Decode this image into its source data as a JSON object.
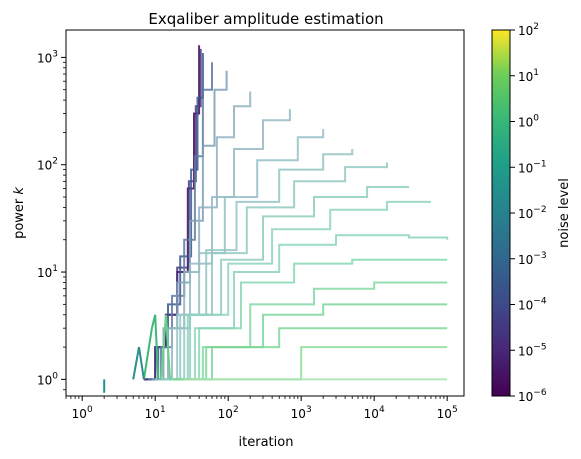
{
  "chart_data": {
    "type": "line",
    "title": "Exqaliber amplitude estimation",
    "xlabel": "iteration",
    "ylabel_main": "power ",
    "ylabel_var": "k",
    "xscale": "log",
    "yscale": "log",
    "xlim": [
      0.6,
      170000
    ],
    "ylim": [
      0.7,
      1800
    ],
    "x_ticks": [
      {
        "value": 1,
        "base": "10",
        "exp": "0"
      },
      {
        "value": 10,
        "base": "10",
        "exp": "1"
      },
      {
        "value": 100,
        "base": "10",
        "exp": "2"
      },
      {
        "value": 1000,
        "base": "10",
        "exp": "3"
      },
      {
        "value": 10000,
        "base": "10",
        "exp": "4"
      },
      {
        "value": 100000,
        "base": "10",
        "exp": "5"
      }
    ],
    "y_ticks": [
      {
        "value": 1,
        "base": "10",
        "exp": "0"
      },
      {
        "value": 10,
        "base": "10",
        "exp": "1"
      },
      {
        "value": 100,
        "base": "10",
        "exp": "2"
      },
      {
        "value": 1000,
        "base": "10",
        "exp": "3"
      }
    ],
    "grid": false,
    "colorbar": {
      "label": "noise level",
      "colormap": "viridis",
      "scale": "log",
      "range": [
        1e-06,
        100
      ],
      "ticks": [
        {
          "value": 1e-06,
          "base": "10",
          "exp": "−6"
        },
        {
          "value": 1e-05,
          "base": "10",
          "exp": "−5"
        },
        {
          "value": 0.0001,
          "base": "10",
          "exp": "−4"
        },
        {
          "value": 0.001,
          "base": "10",
          "exp": "−3"
        },
        {
          "value": 0.01,
          "base": "10",
          "exp": "−2"
        },
        {
          "value": 0.1,
          "base": "10",
          "exp": "−1"
        },
        {
          "value": 1,
          "base": "10",
          "exp": "0"
        },
        {
          "value": 10,
          "base": "10",
          "exp": "1"
        },
        {
          "value": 100,
          "base": "10",
          "exp": "2"
        }
      ]
    },
    "series": [
      {
        "noise": 1e-06,
        "color": "#440154",
        "points": [
          [
            7,
            1
          ],
          [
            10,
            2
          ],
          [
            14,
            4
          ],
          [
            20,
            10
          ],
          [
            28,
            60
          ],
          [
            34,
            300
          ],
          [
            40,
            1300
          ]
        ]
      },
      {
        "noise": 1e-05,
        "color": "#453781",
        "points": [
          [
            7,
            1
          ],
          [
            10,
            2
          ],
          [
            14,
            4
          ],
          [
            20,
            11
          ],
          [
            29,
            70
          ],
          [
            36,
            350
          ],
          [
            42,
            1200
          ]
        ]
      },
      {
        "noise": 0.0001,
        "color": "#39568c",
        "points": [
          [
            8,
            1
          ],
          [
            11,
            2
          ],
          [
            15,
            5
          ],
          [
            22,
            14
          ],
          [
            31,
            90
          ],
          [
            38,
            420
          ],
          [
            45,
            1100
          ]
        ]
      },
      {
        "noise": 0.001,
        "color": "#5a7aa0",
        "points": [
          [
            8,
            1
          ],
          [
            12,
            2
          ],
          [
            17,
            6
          ],
          [
            25,
            20
          ],
          [
            35,
            120
          ],
          [
            45,
            500
          ],
          [
            60,
            900
          ]
        ]
      },
      {
        "noise": 0.003,
        "color": "#7f9db5",
        "points": [
          [
            9,
            1
          ],
          [
            13,
            3
          ],
          [
            20,
            8
          ],
          [
            30,
            30
          ],
          [
            45,
            150
          ],
          [
            65,
            500
          ],
          [
            95,
            750
          ]
        ]
      },
      {
        "noise": 0.01,
        "color": "#8fb0c0",
        "points": [
          [
            10,
            1
          ],
          [
            15,
            3
          ],
          [
            25,
            10
          ],
          [
            40,
            40
          ],
          [
            70,
            180
          ],
          [
            120,
            350
          ],
          [
            200,
            480
          ]
        ]
      },
      {
        "noise": 0.02,
        "color": "#94b9c4",
        "points": [
          [
            10,
            1
          ],
          [
            17,
            3
          ],
          [
            30,
            12
          ],
          [
            60,
            50
          ],
          [
            120,
            140
          ],
          [
            300,
            260
          ],
          [
            700,
            330
          ]
        ]
      },
      {
        "noise": 0.04,
        "color": "#94bec4",
        "points": [
          [
            11,
            1
          ],
          [
            20,
            4
          ],
          [
            40,
            15
          ],
          [
            90,
            50
          ],
          [
            250,
            110
          ],
          [
            900,
            180
          ],
          [
            2000,
            215
          ]
        ]
      },
      {
        "noise": 0.07,
        "color": "#93c4c3",
        "points": [
          [
            12,
            1
          ],
          [
            22,
            4
          ],
          [
            50,
            16
          ],
          [
            130,
            45
          ],
          [
            500,
            90
          ],
          [
            2000,
            125
          ],
          [
            5000,
            140
          ]
        ]
      },
      {
        "noise": 0.12,
        "color": "#92c9c2",
        "points": [
          [
            12,
            1
          ],
          [
            25,
            4
          ],
          [
            60,
            15
          ],
          [
            180,
            40
          ],
          [
            800,
            70
          ],
          [
            4000,
            95
          ],
          [
            15000,
            105
          ]
        ]
      },
      {
        "noise": 0.2,
        "color": "#90cdc0",
        "points": [
          [
            13,
            1
          ],
          [
            28,
            4
          ],
          [
            80,
            13
          ],
          [
            300,
            33
          ],
          [
            1500,
            50
          ],
          [
            8000,
            62
          ],
          [
            30000,
            62
          ]
        ]
      },
      {
        "noise": 0.35,
        "color": "#8ed2be",
        "points": [
          [
            14,
            1
          ],
          [
            30,
            4
          ],
          [
            100,
            12
          ],
          [
            400,
            25
          ],
          [
            2500,
            38
          ],
          [
            15000,
            45
          ],
          [
            60000,
            45
          ]
        ]
      },
      {
        "noise": 0.6,
        "color": "#8bd5b9",
        "points": [
          [
            15,
            1
          ],
          [
            35,
            3
          ],
          [
            120,
            10
          ],
          [
            500,
            18
          ],
          [
            3000,
            22
          ],
          [
            30000,
            21
          ],
          [
            100000,
            20
          ]
        ]
      },
      {
        "noise": 1,
        "color": "#86d8b0",
        "points": [
          [
            16,
            1
          ],
          [
            40,
            3
          ],
          [
            150,
            8
          ],
          [
            800,
            12
          ],
          [
            5000,
            13
          ],
          [
            100000,
            13
          ]
        ]
      },
      {
        "noise": 1.5,
        "color": "#80d9a4",
        "points": [
          [
            17,
            1
          ],
          [
            45,
            2
          ],
          [
            200,
            5
          ],
          [
            1500,
            7
          ],
          [
            10000,
            8
          ],
          [
            100000,
            8
          ]
        ]
      },
      {
        "noise": 2.5,
        "color": "#7ad79a",
        "points": [
          [
            18,
            1
          ],
          [
            50,
            2
          ],
          [
            300,
            4
          ],
          [
            2000,
            5
          ],
          [
            100000,
            5
          ]
        ]
      },
      {
        "noise": 4,
        "color": "#7fd896",
        "points": [
          [
            20,
            1
          ],
          [
            60,
            2
          ],
          [
            500,
            3
          ],
          [
            5000,
            3
          ],
          [
            100000,
            3
          ]
        ]
      },
      {
        "noise": 8,
        "color": "#8ddc98",
        "points": [
          [
            22,
            1
          ],
          [
            80,
            1
          ],
          [
            1000,
            2
          ],
          [
            100000,
            2
          ]
        ]
      },
      {
        "noise": 20,
        "color": "#a8e3b0",
        "points": [
          [
            25,
            1
          ],
          [
            100,
            1
          ],
          [
            100000,
            1
          ]
        ]
      }
    ],
    "noise_free_spikes": [
      {
        "color": "#21918c",
        "points": [
          [
            2,
            0.75
          ],
          [
            2,
            1
          ]
        ]
      },
      {
        "color": "#3cb878",
        "points": [
          [
            7,
            1
          ],
          [
            9,
            3
          ],
          [
            10,
            4
          ],
          [
            11,
            1
          ]
        ]
      },
      {
        "color": "#2c8f8a",
        "points": [
          [
            5,
            1
          ],
          [
            6,
            2
          ],
          [
            7,
            1
          ]
        ]
      },
      {
        "color": "#6ccf8c",
        "points": [
          [
            12,
            1
          ],
          [
            14,
            4
          ],
          [
            16,
            1
          ]
        ]
      }
    ]
  }
}
